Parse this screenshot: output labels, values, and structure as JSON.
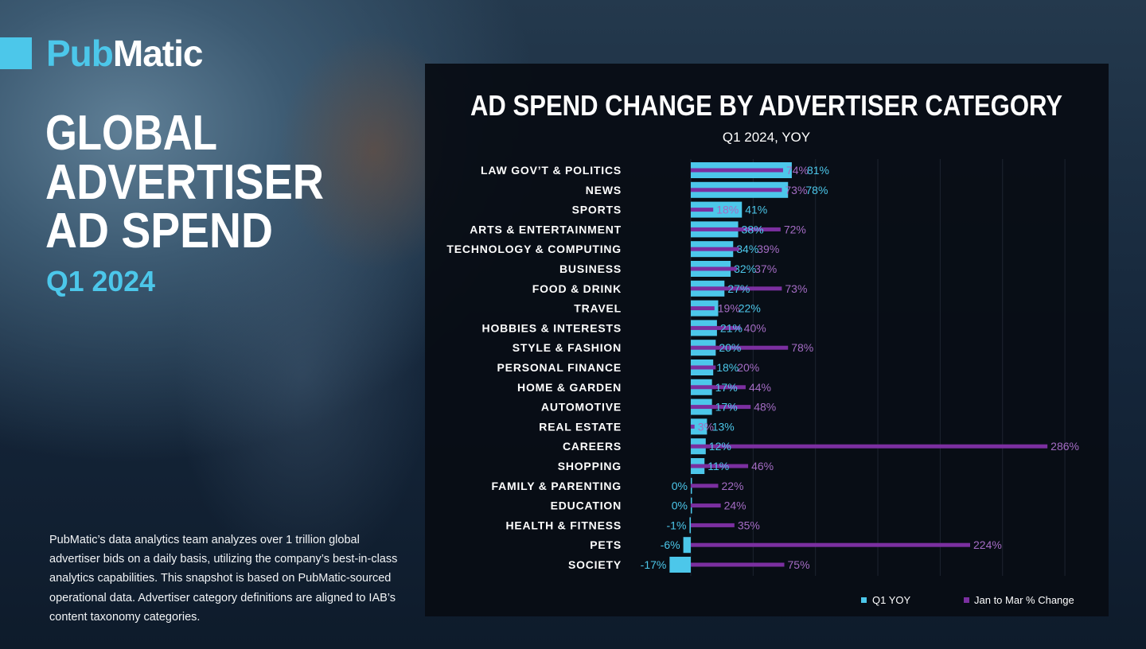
{
  "brand": {
    "logo_part1": "Pub",
    "logo_part2": "Matic"
  },
  "hero": {
    "line1": "GLOBAL",
    "line2": "ADVERTISER",
    "line3": "AD SPEND",
    "period": "Q1 2024"
  },
  "description": "PubMatic’s data analytics team analyzes over 1 trillion global advertiser bids on a daily basis, utilizing the company’s best-in-class analytics capabilities. This snapshot is based on PubMatic-sourced operational data. Advertiser category definitions are aligned to IAB’s content taxonomy categories.",
  "colors": {
    "q1_yoy": "#4cc7ea",
    "jan_mar": "#7b2fa0",
    "jan_mar_label": "#a46cc4",
    "background": "#0a0f17"
  },
  "chart_data": {
    "type": "bar",
    "orientation": "horizontal",
    "title": "AD SPEND CHANGE BY ADVERTISER CATEGORY",
    "subtitle": "Q1 2024, YOY",
    "unit": "%",
    "grid": true,
    "legend_position": "bottom-right",
    "categories": [
      "LAW GOV’T & POLITICS",
      "NEWS",
      "SPORTS",
      "ARTS & ENTERTAINMENT",
      "TECHNOLOGY & COMPUTING",
      "BUSINESS",
      "FOOD & DRINK",
      "TRAVEL",
      "HOBBIES & INTERESTS",
      "STYLE & FASHION",
      "PERSONAL FINANCE",
      "HOME & GARDEN",
      "AUTOMOTIVE",
      "REAL ESTATE",
      "CAREERS",
      "SHOPPING",
      "FAMILY & PARENTING",
      "EDUCATION",
      "HEALTH & FITNESS",
      "PETS",
      "SOCIETY"
    ],
    "series": [
      {
        "name": "Q1 YOY",
        "values": [
          81,
          78,
          41,
          38,
          34,
          32,
          27,
          22,
          21,
          20,
          18,
          17,
          17,
          13,
          12,
          11,
          0,
          0,
          -1,
          -6,
          -17
        ]
      },
      {
        "name": "Jan to Mar % Change",
        "values": [
          74,
          73,
          18,
          72,
          39,
          37,
          73,
          19,
          40,
          78,
          20,
          44,
          48,
          3,
          286,
          46,
          22,
          24,
          35,
          224,
          75
        ]
      }
    ],
    "xlim": [
      -20,
      300
    ]
  }
}
